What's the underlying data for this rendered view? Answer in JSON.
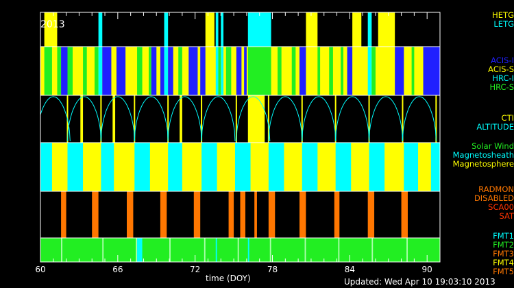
{
  "chart_data": {
    "type": "timeline",
    "year_label": "2013",
    "xlabel": "time (DOY)",
    "xlim": [
      60,
      91
    ],
    "xticks": [
      60,
      66,
      72,
      78,
      84,
      90
    ],
    "updated": "Updated: Wed Apr 10 19:03:10 2013",
    "colors": {
      "black": "#000000",
      "yellow": "#ffff00",
      "cyan": "#00ffff",
      "blue": "#2020ff",
      "green": "#22ee22",
      "orange": "#ff7700",
      "white": "#ffffff"
    },
    "panels": [
      {
        "id": "grating",
        "legend": [
          {
            "label": "HETG",
            "color": "#ffff00"
          },
          {
            "label": "LETG",
            "color": "#00ffff"
          }
        ],
        "background": "#000000",
        "segments": [
          {
            "start": 60.3,
            "end": 61.3,
            "color": "#ffff00"
          },
          {
            "start": 64.5,
            "end": 64.8,
            "color": "#00ffff"
          },
          {
            "start": 69.6,
            "end": 69.9,
            "color": "#00ffff"
          },
          {
            "start": 72.8,
            "end": 73.5,
            "color": "#ffff00"
          },
          {
            "start": 73.6,
            "end": 73.8,
            "color": "#00ffff"
          },
          {
            "start": 74.0,
            "end": 74.2,
            "color": "#00ffff"
          },
          {
            "start": 76.1,
            "end": 77.9,
            "color": "#00ffff"
          },
          {
            "start": 80.6,
            "end": 81.5,
            "color": "#ffff00"
          },
          {
            "start": 84.2,
            "end": 84.9,
            "color": "#ffff00"
          },
          {
            "start": 85.4,
            "end": 85.7,
            "color": "#00ffff"
          },
          {
            "start": 86.2,
            "end": 87.5,
            "color": "#ffff00"
          }
        ]
      },
      {
        "id": "instrument",
        "legend": [
          {
            "label": "ACIS-I",
            "color": "#2020ff"
          },
          {
            "label": "ACIS-S",
            "color": "#ffff00"
          },
          {
            "label": "HRC-I",
            "color": "#00ffff"
          },
          {
            "label": "HRC-S",
            "color": "#22ee22"
          }
        ],
        "background": "#ffff00",
        "segments": [
          {
            "start": 60.3,
            "end": 60.9,
            "color": "#22ee22"
          },
          {
            "start": 61.3,
            "end": 61.6,
            "color": "#22ee22"
          },
          {
            "start": 61.6,
            "end": 62.1,
            "color": "#2020ff"
          },
          {
            "start": 62.1,
            "end": 62.5,
            "color": "#22ee22"
          },
          {
            "start": 63.3,
            "end": 63.6,
            "color": "#22ee22"
          },
          {
            "start": 64.2,
            "end": 64.5,
            "color": "#22ee22"
          },
          {
            "start": 64.5,
            "end": 64.8,
            "color": "#00ffff"
          },
          {
            "start": 64.8,
            "end": 65.5,
            "color": "#2020ff"
          },
          {
            "start": 65.9,
            "end": 66.6,
            "color": "#2020ff"
          },
          {
            "start": 67.5,
            "end": 67.9,
            "color": "#22ee22"
          },
          {
            "start": 68.4,
            "end": 68.6,
            "color": "#22ee22"
          },
          {
            "start": 68.6,
            "end": 69.0,
            "color": "#2020ff"
          },
          {
            "start": 69.3,
            "end": 69.6,
            "color": "#2020ff"
          },
          {
            "start": 69.6,
            "end": 69.9,
            "color": "#00ffff"
          },
          {
            "start": 69.9,
            "end": 70.3,
            "color": "#2020ff"
          },
          {
            "start": 70.7,
            "end": 71.0,
            "color": "#22ee22"
          },
          {
            "start": 71.5,
            "end": 72.2,
            "color": "#2020ff"
          },
          {
            "start": 72.4,
            "end": 72.8,
            "color": "#2020ff"
          },
          {
            "start": 73.6,
            "end": 73.8,
            "color": "#00ffff"
          },
          {
            "start": 73.8,
            "end": 74.0,
            "color": "#22ee22"
          },
          {
            "start": 74.0,
            "end": 74.2,
            "color": "#00ffff"
          },
          {
            "start": 74.4,
            "end": 74.8,
            "color": "#22ee22"
          },
          {
            "start": 75.2,
            "end": 75.6,
            "color": "#2020ff"
          },
          {
            "start": 75.8,
            "end": 76.0,
            "color": "#2020ff"
          },
          {
            "start": 76.1,
            "end": 77.9,
            "color": "#22ee22"
          },
          {
            "start": 78.4,
            "end": 78.7,
            "color": "#22ee22"
          },
          {
            "start": 79.5,
            "end": 79.8,
            "color": "#22ee22"
          },
          {
            "start": 80.1,
            "end": 80.6,
            "color": "#2020ff"
          },
          {
            "start": 81.5,
            "end": 81.7,
            "color": "#22ee22"
          },
          {
            "start": 82.4,
            "end": 82.7,
            "color": "#22ee22"
          },
          {
            "start": 83.3,
            "end": 83.5,
            "color": "#22ee22"
          },
          {
            "start": 83.8,
            "end": 84.2,
            "color": "#2020ff"
          },
          {
            "start": 85.4,
            "end": 85.7,
            "color": "#00ffff"
          },
          {
            "start": 85.7,
            "end": 86.0,
            "color": "#22ee22"
          },
          {
            "start": 87.5,
            "end": 88.2,
            "color": "#2020ff"
          },
          {
            "start": 88.8,
            "end": 89.0,
            "color": "#22ee22"
          },
          {
            "start": 89.7,
            "end": 91.0,
            "color": "#2020ff"
          }
        ]
      },
      {
        "id": "altitude",
        "legend": [
          {
            "label": "CTI",
            "color": "#ffff00"
          },
          {
            "label": "ALTITUDE",
            "color": "#00ffff"
          }
        ],
        "background": "#000000",
        "segments": [
          {
            "start": 63.1,
            "end": 63.3,
            "color": "#ffff00"
          },
          {
            "start": 65.6,
            "end": 65.8,
            "color": "#ffff00"
          },
          {
            "start": 70.8,
            "end": 71.0,
            "color": "#ffff00"
          },
          {
            "start": 76.1,
            "end": 77.4,
            "color": "#ffff00"
          }
        ],
        "ticks": [
          62.1,
          64.7,
          67.3,
          69.9,
          72.5,
          75.2,
          77.7,
          80.3,
          82.9,
          85.5,
          88.1,
          90.7
        ],
        "orbit_starts": [
          59.7,
          62.1,
          64.7,
          67.3,
          69.9,
          72.5,
          75.2,
          77.7,
          80.3,
          82.9,
          85.5,
          88.1
        ],
        "orbit_period": 2.6
      },
      {
        "id": "environment",
        "legend": [
          {
            "label": "Solar Wind",
            "color": "#22ee22"
          },
          {
            "label": "Magnetosheath",
            "color": "#00ffff"
          },
          {
            "label": "Magnetosphere",
            "color": "#ffff00"
          }
        ],
        "background": "#ffff00",
        "segments": [
          {
            "start": 60.0,
            "end": 60.9,
            "color": "#00ffff"
          },
          {
            "start": 62.1,
            "end": 63.3,
            "color": "#00ffff"
          },
          {
            "start": 64.7,
            "end": 65.7,
            "color": "#00ffff"
          },
          {
            "start": 67.3,
            "end": 68.5,
            "color": "#00ffff"
          },
          {
            "start": 69.9,
            "end": 71.0,
            "color": "#00ffff"
          },
          {
            "start": 72.5,
            "end": 73.7,
            "color": "#00ffff"
          },
          {
            "start": 75.1,
            "end": 76.3,
            "color": "#00ffff"
          },
          {
            "start": 77.7,
            "end": 78.9,
            "color": "#00ffff"
          },
          {
            "start": 80.3,
            "end": 81.5,
            "color": "#00ffff"
          },
          {
            "start": 82.9,
            "end": 84.1,
            "color": "#00ffff"
          },
          {
            "start": 85.5,
            "end": 86.7,
            "color": "#00ffff"
          },
          {
            "start": 88.2,
            "end": 89.3,
            "color": "#00ffff"
          },
          {
            "start": 90.3,
            "end": 91.0,
            "color": "#00ffff"
          }
        ]
      },
      {
        "id": "radmon",
        "legend": [
          {
            "label": "RADMON",
            "color": "#ff7700"
          },
          {
            "label": "DISABLED",
            "color": "#ff7700"
          },
          {
            "label": "SCA00",
            "color": "#ff3300"
          },
          {
            "label": "SAT",
            "color": "#ff3300"
          }
        ],
        "background": "#000000",
        "segments": [
          {
            "start": 61.6,
            "end": 62.0,
            "color": "#ff7700"
          },
          {
            "start": 64.0,
            "end": 64.5,
            "color": "#ff7700"
          },
          {
            "start": 66.7,
            "end": 67.2,
            "color": "#ff7700"
          },
          {
            "start": 69.3,
            "end": 69.8,
            "color": "#ff7700"
          },
          {
            "start": 71.9,
            "end": 72.4,
            "color": "#ff7700"
          },
          {
            "start": 74.6,
            "end": 75.0,
            "color": "#ff7700"
          },
          {
            "start": 75.5,
            "end": 75.9,
            "color": "#ff7700"
          },
          {
            "start": 76.6,
            "end": 76.8,
            "color": "#ff7700"
          },
          {
            "start": 77.7,
            "end": 78.2,
            "color": "#ff7700"
          },
          {
            "start": 80.1,
            "end": 80.6,
            "color": "#ff7700"
          },
          {
            "start": 82.8,
            "end": 83.2,
            "color": "#ff7700"
          },
          {
            "start": 85.4,
            "end": 85.9,
            "color": "#ff7700"
          },
          {
            "start": 88.0,
            "end": 88.5,
            "color": "#ff7700"
          }
        ]
      },
      {
        "id": "format",
        "legend": [
          {
            "label": "FMT1",
            "color": "#00ffff"
          },
          {
            "label": "FMT2",
            "color": "#22ee22"
          },
          {
            "label": "FMT3",
            "color": "#ff7700"
          },
          {
            "label": "FMT4",
            "color": "#ffff00"
          },
          {
            "label": "FMT5",
            "color": "#ff7700"
          }
        ],
        "background": "#22ee22",
        "segments": [
          {
            "start": 61.6,
            "end": 61.7,
            "color": "#aaffaa"
          },
          {
            "start": 64.8,
            "end": 64.9,
            "color": "#aaffaa"
          },
          {
            "start": 67.4,
            "end": 67.5,
            "color": "#aaffaa"
          },
          {
            "start": 67.5,
            "end": 67.9,
            "color": "#00ffff"
          },
          {
            "start": 70.0,
            "end": 70.1,
            "color": "#aaffaa"
          },
          {
            "start": 72.7,
            "end": 72.8,
            "color": "#aaffaa"
          },
          {
            "start": 73.6,
            "end": 73.7,
            "color": "#00ffff"
          },
          {
            "start": 75.3,
            "end": 75.4,
            "color": "#aaffaa"
          },
          {
            "start": 76.1,
            "end": 76.2,
            "color": "#00ffff"
          },
          {
            "start": 77.8,
            "end": 77.9,
            "color": "#aaffaa"
          },
          {
            "start": 80.5,
            "end": 80.6,
            "color": "#aaffaa"
          },
          {
            "start": 83.1,
            "end": 83.2,
            "color": "#aaffaa"
          },
          {
            "start": 85.7,
            "end": 85.8,
            "color": "#aaffaa"
          },
          {
            "start": 88.4,
            "end": 88.5,
            "color": "#aaffaa"
          }
        ]
      }
    ]
  }
}
